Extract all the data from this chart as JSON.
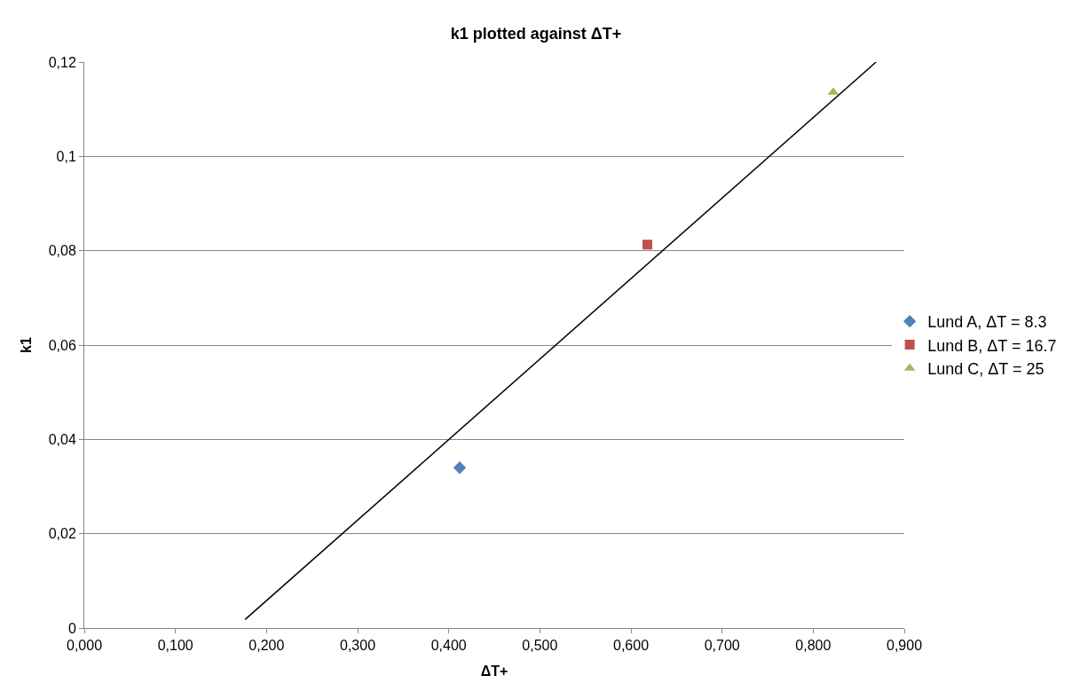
{
  "chart_data": {
    "type": "scatter",
    "title": "k1 plotted against ΔT+",
    "xlabel": "ΔT+",
    "ylabel": "k1",
    "series": [
      {
        "name": "Lund A, ΔT = 8.3",
        "color": "#4f81bd",
        "marker": "diamond",
        "x": [
          0.412
        ],
        "values": [
          0.034
        ]
      },
      {
        "name": "Lund B, ΔT = 16.7",
        "color": "#c0504d",
        "marker": "square",
        "x": [
          0.618
        ],
        "values": [
          0.0813
        ]
      },
      {
        "name": "Lund C, ΔT = 25",
        "color": "#9bbb59",
        "marker": "triangle",
        "x": [
          0.822
        ],
        "values": [
          0.1136
        ]
      },
      {
        "type": "line",
        "color": "#000000",
        "marker": "none",
        "x": [
          0.1765,
          0.869
        ],
        "values": [
          0.0018,
          0.12
        ]
      }
    ],
    "xlim": [
      0,
      0.9
    ],
    "ylim": [
      0,
      0.12
    ],
    "xticks": [
      {
        "value": 0,
        "label": "0,000"
      },
      {
        "value": 0.1,
        "label": "0,100"
      },
      {
        "value": 0.2,
        "label": "0,200"
      },
      {
        "value": 0.3,
        "label": "0,300"
      },
      {
        "value": 0.4,
        "label": "0,400"
      },
      {
        "value": 0.5,
        "label": "0,500"
      },
      {
        "value": 0.6,
        "label": "0,600"
      },
      {
        "value": 0.7,
        "label": "0,700"
      },
      {
        "value": 0.8,
        "label": "0,800"
      },
      {
        "value": 0.9,
        "label": "0,900"
      }
    ],
    "yticks": [
      0,
      {
        "value": 0.02,
        "label": "0,02"
      },
      {
        "value": 0.04,
        "label": "0,04"
      },
      {
        "value": 0.06,
        "label": "0,06"
      },
      {
        "value": 0.08,
        "label": "0,08"
      },
      {
        "value": 0.1,
        "label": "0,1"
      },
      {
        "value": 0.12,
        "label": "0,12"
      }
    ],
    "grid": "y",
    "legend": "right"
  }
}
